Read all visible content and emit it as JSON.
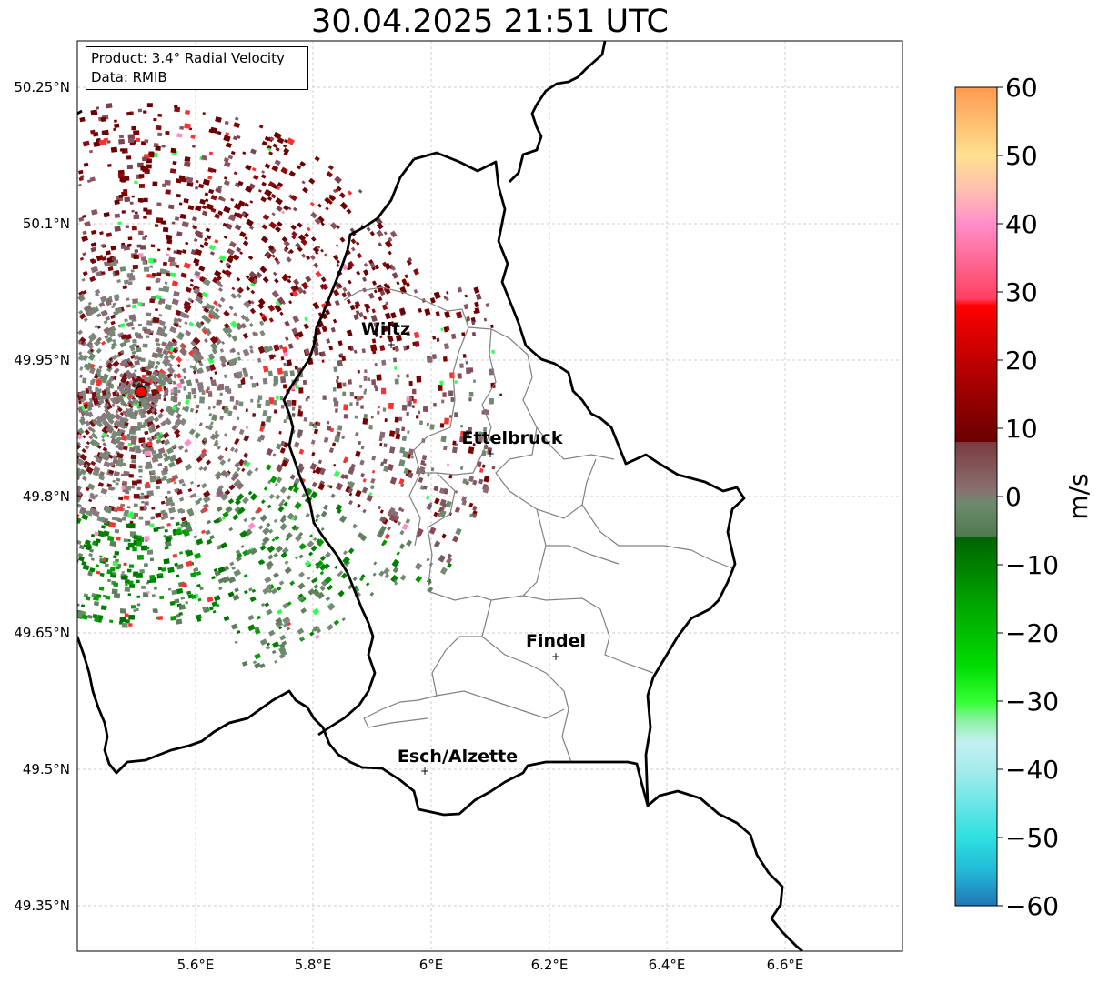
{
  "title": "30.04.2025 21:51 UTC",
  "info": {
    "product": "Product: 3.4° Radial Velocity",
    "source": "Data: RMIB"
  },
  "axes": {
    "lat_ticks": [
      "50.25°N",
      "50.1°N",
      "49.95°N",
      "49.8°N",
      "49.65°N",
      "49.5°N",
      "49.35°N"
    ],
    "lon_ticks": [
      "5.6°E",
      "5.8°E",
      "6°E",
      "6.2°E",
      "6.4°E",
      "6.6°E"
    ]
  },
  "cities": [
    {
      "name": "Wiltz"
    },
    {
      "name": "Ettelbruck"
    },
    {
      "name": "Findel"
    },
    {
      "name": "Esch/Alzette"
    }
  ],
  "colorbar": {
    "unit": "m/s",
    "ticks": [
      "60",
      "50",
      "40",
      "30",
      "20",
      "10",
      "0",
      "−10",
      "−20",
      "−30",
      "−40",
      "−50",
      "−60"
    ],
    "stops": [
      {
        "v": -60,
        "color": "#1f77b4"
      },
      {
        "v": -55,
        "color": "#22b8d6"
      },
      {
        "v": -50,
        "color": "#2ee0e0"
      },
      {
        "v": -40,
        "color": "#a6ecec"
      },
      {
        "v": -36,
        "color": "#c4f0f0"
      },
      {
        "v": -33,
        "color": "#8ef0a8"
      },
      {
        "v": -30,
        "color": "#33ff33"
      },
      {
        "v": -25,
        "color": "#00dd00"
      },
      {
        "v": -15,
        "color": "#00a000"
      },
      {
        "v": -6,
        "color": "#006400"
      },
      {
        "v": -6,
        "color": "#4e7a4e"
      },
      {
        "v": -1,
        "color": "#6e8a6e"
      },
      {
        "v": 1,
        "color": "#8a7070"
      },
      {
        "v": 8,
        "color": "#7a3a40"
      },
      {
        "v": 8,
        "color": "#6a0000"
      },
      {
        "v": 20,
        "color": "#c00000"
      },
      {
        "v": 28,
        "color": "#ff0000"
      },
      {
        "v": 29,
        "color": "#ff4060"
      },
      {
        "v": 40,
        "color": "#ff8ec8"
      },
      {
        "v": 45,
        "color": "#ffc0b0"
      },
      {
        "v": 50,
        "color": "#ffe090"
      },
      {
        "v": 60,
        "color": "#ff9a50"
      }
    ]
  },
  "colors": {
    "border": "#000000",
    "canton": "#808080",
    "radar_site": "#ff0000"
  }
}
